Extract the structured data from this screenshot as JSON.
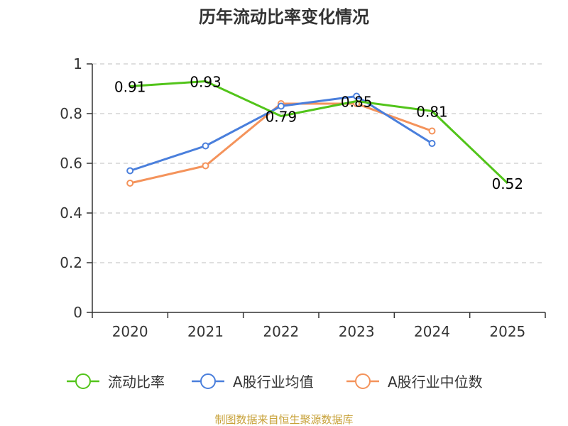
{
  "chart_data": {
    "type": "line",
    "title": "历年流动比率变化情况",
    "categories": [
      "2020",
      "2021",
      "2022",
      "2023",
      "2024",
      "2025"
    ],
    "ylim": [
      0,
      1
    ],
    "yticks": [
      "0",
      "0.2",
      "0.4",
      "0.6",
      "0.8",
      "1"
    ],
    "ytick_values": [
      0,
      0.2,
      0.4,
      0.6,
      0.8,
      1
    ],
    "grid": true,
    "legend_position": "bottom",
    "series": [
      {
        "name": "流动比率",
        "color": "#52c41a",
        "values": [
          0.91,
          0.93,
          0.79,
          0.85,
          0.81,
          0.52
        ],
        "labels": [
          "0.91",
          "0.93",
          "0.79",
          "0.85",
          "0.81",
          "0.52"
        ],
        "show_points": false
      },
      {
        "name": "A股行业均值",
        "color": "#4a7fdc",
        "values": [
          0.57,
          0.67,
          0.83,
          0.87,
          0.68,
          null
        ],
        "show_points": true
      },
      {
        "name": "A股行业中位数",
        "color": "#f4935b",
        "values": [
          0.52,
          0.59,
          0.84,
          0.84,
          0.73,
          null
        ],
        "show_points": true
      }
    ]
  },
  "footer": {
    "source": "制图数据来自恒生聚源数据库"
  }
}
